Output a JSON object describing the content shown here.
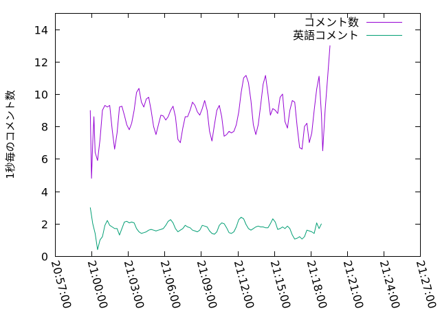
{
  "chart_data": {
    "type": "line",
    "title": "",
    "xlabel": "",
    "ylabel": "1秒毎のコメント数",
    "ylim": [
      0,
      15
    ],
    "yticks": [
      0,
      2,
      4,
      6,
      8,
      10,
      12,
      14
    ],
    "xlim": [
      "20:57:00",
      "21:27:00"
    ],
    "xticks": [
      "20:57:00",
      "21:00:00",
      "21:03:00",
      "21:06:00",
      "21:09:00",
      "21:12:00",
      "21:15:00",
      "21:18:00",
      "21:21:00",
      "21:24:00",
      "21:27:00"
    ],
    "grid": false,
    "legend": "top-right",
    "series": [
      {
        "name": "コメント数",
        "color": "#9400d3",
        "points": [
          [
            "20:59:54",
            9.0
          ],
          [
            "21:00:00",
            4.8
          ],
          [
            "21:00:06",
            7.0
          ],
          [
            "21:00:12",
            8.6
          ],
          [
            "21:00:18",
            6.4
          ],
          [
            "21:00:30",
            5.9
          ],
          [
            "21:00:42",
            7.2
          ],
          [
            "21:00:54",
            9.0
          ],
          [
            "21:01:06",
            9.3
          ],
          [
            "21:01:18",
            9.2
          ],
          [
            "21:01:30",
            9.3
          ],
          [
            "21:01:42",
            7.8
          ],
          [
            "21:01:54",
            6.6
          ],
          [
            "21:02:06",
            7.6
          ],
          [
            "21:02:18",
            9.2
          ],
          [
            "21:02:30",
            9.25
          ],
          [
            "21:02:42",
            8.7
          ],
          [
            "21:02:54",
            8.1
          ],
          [
            "21:03:06",
            7.8
          ],
          [
            "21:03:18",
            8.2
          ],
          [
            "21:03:30",
            9.0
          ],
          [
            "21:03:42",
            10.1
          ],
          [
            "21:03:54",
            10.35
          ],
          [
            "21:04:06",
            9.5
          ],
          [
            "21:04:18",
            9.2
          ],
          [
            "21:04:30",
            9.7
          ],
          [
            "21:04:42",
            9.8
          ],
          [
            "21:04:54",
            9.0
          ],
          [
            "21:05:06",
            8.0
          ],
          [
            "21:05:18",
            7.5
          ],
          [
            "21:05:30",
            8.1
          ],
          [
            "21:05:42",
            8.7
          ],
          [
            "21:05:54",
            8.65
          ],
          [
            "21:06:06",
            8.4
          ],
          [
            "21:06:18",
            8.6
          ],
          [
            "21:06:30",
            9.0
          ],
          [
            "21:06:42",
            9.25
          ],
          [
            "21:06:54",
            8.6
          ],
          [
            "21:07:06",
            7.2
          ],
          [
            "21:07:18",
            7.0
          ],
          [
            "21:07:30",
            7.9
          ],
          [
            "21:07:42",
            8.6
          ],
          [
            "21:07:54",
            8.6
          ],
          [
            "21:08:06",
            9.0
          ],
          [
            "21:08:18",
            9.5
          ],
          [
            "21:08:30",
            9.3
          ],
          [
            "21:08:42",
            8.9
          ],
          [
            "21:08:54",
            8.7
          ],
          [
            "21:09:06",
            9.1
          ],
          [
            "21:09:18",
            9.6
          ],
          [
            "21:09:30",
            9.0
          ],
          [
            "21:09:42",
            7.7
          ],
          [
            "21:09:54",
            7.1
          ],
          [
            "21:10:06",
            8.1
          ],
          [
            "21:10:18",
            9.0
          ],
          [
            "21:10:30",
            9.3
          ],
          [
            "21:10:42",
            8.6
          ],
          [
            "21:10:54",
            7.4
          ],
          [
            "21:11:06",
            7.5
          ],
          [
            "21:11:18",
            7.7
          ],
          [
            "21:11:30",
            7.6
          ],
          [
            "21:11:42",
            7.7
          ],
          [
            "21:11:54",
            8.1
          ],
          [
            "21:12:06",
            8.9
          ],
          [
            "21:12:18",
            10.1
          ],
          [
            "21:12:30",
            11.0
          ],
          [
            "21:12:42",
            11.15
          ],
          [
            "21:12:54",
            10.7
          ],
          [
            "21:13:06",
            9.6
          ],
          [
            "21:13:18",
            8.1
          ],
          [
            "21:13:30",
            7.5
          ],
          [
            "21:13:42",
            8.1
          ],
          [
            "21:13:54",
            9.3
          ],
          [
            "21:14:06",
            10.6
          ],
          [
            "21:14:18",
            11.15
          ],
          [
            "21:14:30",
            10.0
          ],
          [
            "21:14:42",
            8.7
          ],
          [
            "21:14:54",
            9.1
          ],
          [
            "21:15:06",
            9.0
          ],
          [
            "21:15:18",
            8.8
          ],
          [
            "21:15:30",
            9.8
          ],
          [
            "21:15:42",
            10.0
          ],
          [
            "21:15:54",
            8.3
          ],
          [
            "21:16:06",
            7.9
          ],
          [
            "21:16:18",
            9.0
          ],
          [
            "21:16:30",
            9.6
          ],
          [
            "21:16:42",
            9.5
          ],
          [
            "21:16:54",
            8.0
          ],
          [
            "21:17:06",
            6.7
          ],
          [
            "21:17:18",
            6.6
          ],
          [
            "21:17:30",
            8.0
          ],
          [
            "21:17:42",
            8.2
          ],
          [
            "21:17:54",
            7.0
          ],
          [
            "21:18:06",
            7.6
          ],
          [
            "21:18:18",
            9.0
          ],
          [
            "21:18:30",
            10.3
          ],
          [
            "21:18:42",
            11.1
          ],
          [
            "21:18:54",
            8.7
          ],
          [
            "21:19:00",
            6.5
          ],
          [
            "21:19:12",
            9.0
          ],
          [
            "21:19:24",
            11.0
          ],
          [
            "21:19:36",
            13.0
          ]
        ]
      },
      {
        "name": "英語コメント",
        "color": "#009e73",
        "points": [
          [
            "20:59:54",
            3.0
          ],
          [
            "21:00:06",
            2.0
          ],
          [
            "21:00:18",
            1.4
          ],
          [
            "21:00:30",
            0.4
          ],
          [
            "21:00:42",
            1.0
          ],
          [
            "21:00:54",
            1.2
          ],
          [
            "21:01:06",
            1.9
          ],
          [
            "21:01:18",
            2.2
          ],
          [
            "21:01:30",
            1.9
          ],
          [
            "21:01:42",
            1.8
          ],
          [
            "21:01:54",
            1.7
          ],
          [
            "21:02:06",
            1.7
          ],
          [
            "21:02:18",
            1.3
          ],
          [
            "21:02:30",
            1.7
          ],
          [
            "21:02:42",
            2.1
          ],
          [
            "21:02:54",
            2.15
          ],
          [
            "21:03:06",
            2.05
          ],
          [
            "21:03:18",
            2.1
          ],
          [
            "21:03:30",
            2.05
          ],
          [
            "21:03:42",
            1.7
          ],
          [
            "21:03:54",
            1.5
          ],
          [
            "21:04:06",
            1.4
          ],
          [
            "21:04:18",
            1.45
          ],
          [
            "21:04:30",
            1.5
          ],
          [
            "21:04:42",
            1.6
          ],
          [
            "21:04:54",
            1.65
          ],
          [
            "21:05:06",
            1.6
          ],
          [
            "21:05:18",
            1.55
          ],
          [
            "21:05:30",
            1.6
          ],
          [
            "21:05:42",
            1.65
          ],
          [
            "21:05:54",
            1.7
          ],
          [
            "21:06:06",
            1.9
          ],
          [
            "21:06:18",
            2.15
          ],
          [
            "21:06:30",
            2.25
          ],
          [
            "21:06:42",
            2.05
          ],
          [
            "21:06:54",
            1.7
          ],
          [
            "21:07:06",
            1.5
          ],
          [
            "21:07:18",
            1.6
          ],
          [
            "21:07:30",
            1.7
          ],
          [
            "21:07:42",
            1.9
          ],
          [
            "21:07:54",
            1.8
          ],
          [
            "21:08:06",
            1.75
          ],
          [
            "21:08:18",
            1.6
          ],
          [
            "21:08:30",
            1.55
          ],
          [
            "21:08:42",
            1.5
          ],
          [
            "21:08:54",
            1.6
          ],
          [
            "21:09:06",
            1.9
          ],
          [
            "21:09:18",
            1.85
          ],
          [
            "21:09:30",
            1.8
          ],
          [
            "21:09:42",
            1.55
          ],
          [
            "21:09:54",
            1.4
          ],
          [
            "21:10:06",
            1.35
          ],
          [
            "21:10:18",
            1.5
          ],
          [
            "21:10:30",
            1.9
          ],
          [
            "21:10:42",
            2.05
          ],
          [
            "21:10:54",
            2.0
          ],
          [
            "21:11:06",
            1.75
          ],
          [
            "21:11:18",
            1.45
          ],
          [
            "21:11:30",
            1.4
          ],
          [
            "21:11:42",
            1.5
          ],
          [
            "21:11:54",
            1.8
          ],
          [
            "21:12:06",
            2.25
          ],
          [
            "21:12:18",
            2.4
          ],
          [
            "21:12:30",
            2.3
          ],
          [
            "21:12:42",
            1.95
          ],
          [
            "21:12:54",
            1.7
          ],
          [
            "21:13:06",
            1.6
          ],
          [
            "21:13:18",
            1.7
          ],
          [
            "21:13:30",
            1.8
          ],
          [
            "21:13:42",
            1.85
          ],
          [
            "21:13:54",
            1.8
          ],
          [
            "21:14:06",
            1.8
          ],
          [
            "21:14:18",
            1.75
          ],
          [
            "21:14:30",
            1.75
          ],
          [
            "21:14:42",
            2.0
          ],
          [
            "21:14:54",
            2.3
          ],
          [
            "21:15:06",
            2.1
          ],
          [
            "21:15:18",
            1.65
          ],
          [
            "21:15:30",
            1.7
          ],
          [
            "21:15:42",
            1.8
          ],
          [
            "21:15:54",
            1.7
          ],
          [
            "21:16:06",
            1.85
          ],
          [
            "21:16:18",
            1.7
          ],
          [
            "21:16:30",
            1.3
          ],
          [
            "21:16:42",
            1.05
          ],
          [
            "21:16:54",
            1.1
          ],
          [
            "21:17:06",
            1.2
          ],
          [
            "21:17:18",
            1.05
          ],
          [
            "21:17:30",
            1.2
          ],
          [
            "21:17:42",
            1.6
          ],
          [
            "21:17:54",
            1.55
          ],
          [
            "21:18:06",
            1.5
          ],
          [
            "21:18:18",
            1.4
          ],
          [
            "21:18:30",
            2.05
          ],
          [
            "21:18:42",
            1.7
          ],
          [
            "21:18:54",
            2.0
          ]
        ]
      }
    ]
  }
}
